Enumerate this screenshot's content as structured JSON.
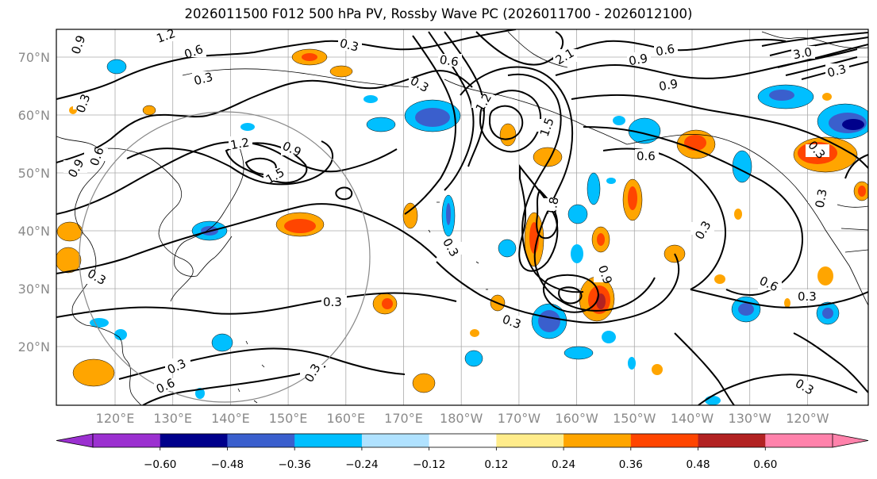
{
  "title": "2026011500 F012 500 hPa PV, Rossby Wave PC (2026011700 - 2026012100)",
  "map": {
    "lat_labels": [
      "70°N",
      "60°N",
      "50°N",
      "40°N",
      "30°N",
      "20°N"
    ],
    "lon_labels": [
      "120°E",
      "130°E",
      "140°E",
      "150°E",
      "160°E",
      "170°E",
      "180°W",
      "170°W",
      "160°W",
      "150°W",
      "140°W",
      "130°W",
      "120°W"
    ],
    "contour_labels": [
      "0.3",
      "0.6",
      "0.9",
      "1.2",
      "1.5",
      "1.8",
      "2.1",
      "3.0"
    ]
  },
  "colorbar": {
    "ticks": [
      "−0.60",
      "−0.48",
      "−0.36",
      "−0.24",
      "−0.12",
      "0.12",
      "0.24",
      "0.36",
      "0.48",
      "0.60"
    ],
    "colors": [
      "#9b30d0",
      "#00008b",
      "#3a5fcd",
      "#00bfff",
      "#b0e2ff",
      "#ffffff",
      "#ffec8b",
      "#ffa500",
      "#ff4500",
      "#b22222",
      "#ff82ab"
    ],
    "extend": "both"
  }
}
